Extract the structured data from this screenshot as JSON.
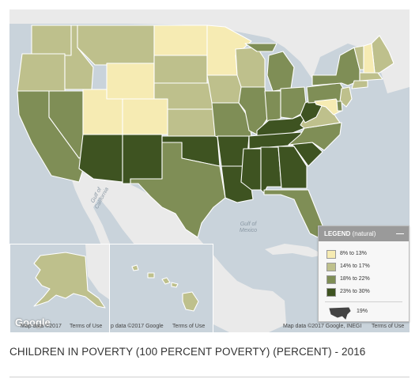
{
  "title": "CHILDREN IN POVERTY (100 PERCENT POVERTY) (PERCENT) - 2016",
  "map_labels": {
    "gulf_california": "Gulf of California",
    "gulf_mexico": "Gulf of Mexico"
  },
  "footers": {
    "left": "Map data ©2017",
    "left_terms": "Terms of Use",
    "middle": "p data ©2017 Google",
    "middle_terms": "Terms of Use",
    "right": "Map data ©2017 Google, INEGI",
    "right_terms": "Terms of Use"
  },
  "google_logo": "Google",
  "legend": {
    "title": "LEGEND",
    "subtitle": "(natural)",
    "collapse": "—",
    "items": [
      {
        "label": "8% to 13%",
        "color": "#f6ebb3"
      },
      {
        "label": "14% to 17%",
        "color": "#bec08c"
      },
      {
        "label": "18% to 22%",
        "color": "#7f8e56"
      },
      {
        "label": "23% to 30%",
        "color": "#3e5321"
      }
    ],
    "us_value": "19%"
  },
  "state_classes": {
    "WA": 2,
    "OR": 2,
    "CA": 3,
    "NV": 3,
    "ID": 2,
    "MT": 2,
    "WY": 1,
    "UT": 1,
    "CO": 1,
    "AZ": 4,
    "NM": 4,
    "ND": 1,
    "SD": 2,
    "NE": 2,
    "KS": 2,
    "OK": 4,
    "TX": 3,
    "MN": 1,
    "IA": 2,
    "MO": 3,
    "AR": 4,
    "LA": 4,
    "WI": 2,
    "IL": 3,
    "MI": 3,
    "IN": 3,
    "OH": 3,
    "KY": 4,
    "TN": 4,
    "MS": 4,
    "AL": 4,
    "GA": 4,
    "FL": 3,
    "SC": 4,
    "NC": 3,
    "VA": 2,
    "WV": 4,
    "PA": 3,
    "NY": 3,
    "ME": 2,
    "VT": 2,
    "NH": 1,
    "MA": 2,
    "CT": 2,
    "NJ": 2,
    "MD": 1,
    "DE": 3,
    "AK": 2,
    "HI": 2
  }
}
